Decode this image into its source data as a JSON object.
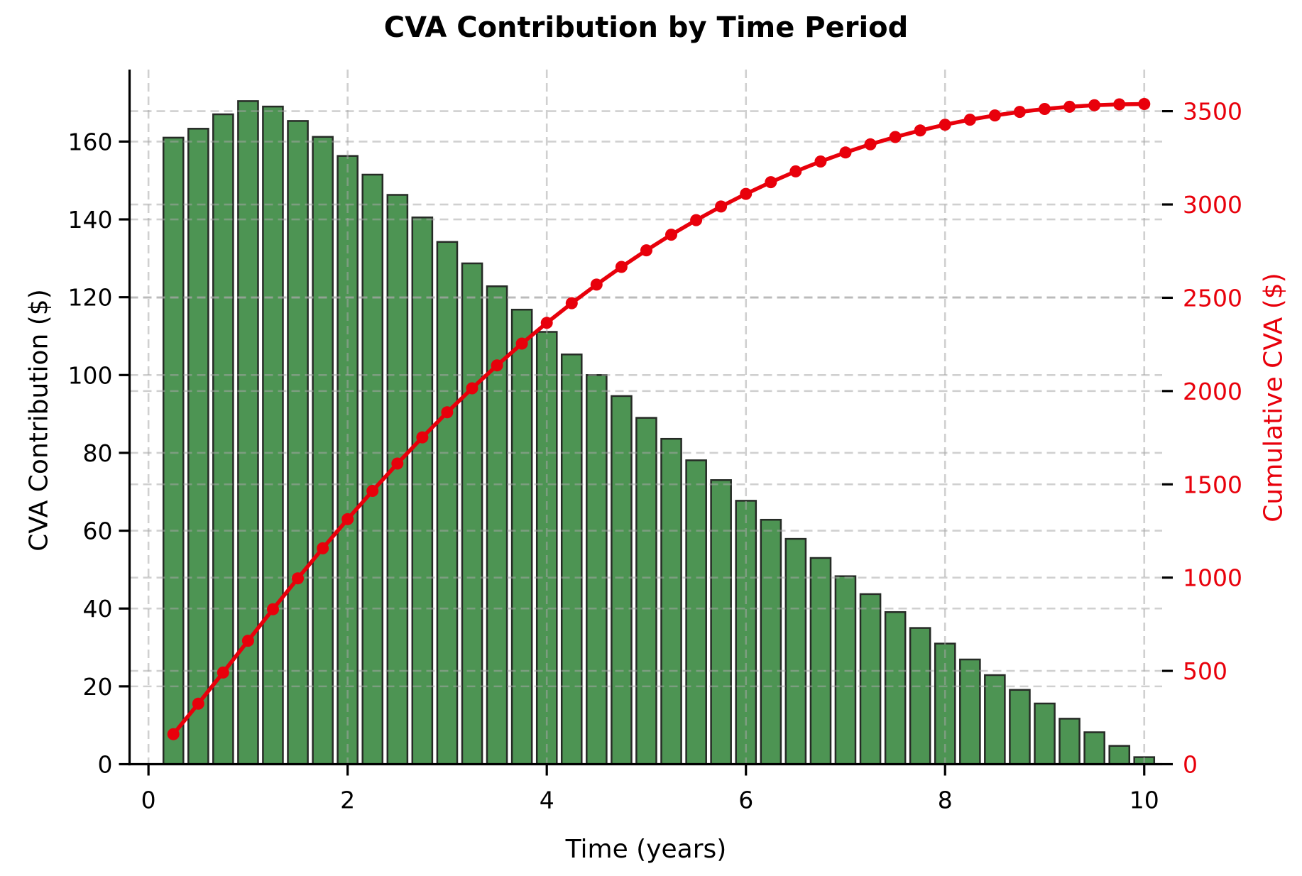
{
  "title": "CVA Contribution by Time Period",
  "x_axis": {
    "label": "Time (years)",
    "tick_values": [
      0,
      2,
      4,
      6,
      8,
      10
    ],
    "tick_labels": [
      "0",
      "2",
      "4",
      "6",
      "8",
      "10"
    ]
  },
  "left_axis": {
    "label": "CVA Contribution ($)",
    "tick_values": [
      0,
      20,
      40,
      60,
      80,
      100,
      120,
      140,
      160
    ],
    "tick_labels": [
      "0",
      "20",
      "40",
      "60",
      "80",
      "100",
      "120",
      "140",
      "160"
    ],
    "color": "#000000"
  },
  "right_axis": {
    "label": "Cumulative CVA ($)",
    "tick_values": [
      0,
      500,
      1000,
      1500,
      2000,
      2500,
      3000,
      3500
    ],
    "tick_labels": [
      "0",
      "500",
      "1000",
      "1500",
      "2000",
      "2500",
      "3000",
      "3500"
    ],
    "color": "#e8000b"
  },
  "colors": {
    "bar_fill": "#4d9453",
    "bar_edge": "#262b26",
    "line": "#e8000b",
    "grid": "#a7a7a7",
    "background": "#ffffff",
    "tick_mark": "#000000"
  },
  "chart_data": {
    "type": "bar",
    "title": "CVA Contribution by Time Period",
    "xlabel": "Time (years)",
    "ylabel": "CVA Contribution ($)",
    "ylabel_right": "Cumulative CVA ($)",
    "x": [
      0.25,
      0.5,
      0.75,
      1.0,
      1.25,
      1.5,
      1.75,
      2.0,
      2.25,
      2.5,
      2.75,
      3.0,
      3.25,
      3.5,
      3.75,
      4.0,
      4.25,
      4.5,
      4.75,
      5.0,
      5.25,
      5.5,
      5.75,
      6.0,
      6.25,
      6.5,
      6.75,
      7.0,
      7.25,
      7.5,
      7.75,
      8.0,
      8.25,
      8.5,
      8.75,
      9.0,
      9.25,
      9.5,
      9.75,
      10.0
    ],
    "series": [
      {
        "name": "CVA Contribution",
        "type": "bar",
        "axis": "left",
        "values": [
          161.0,
          163.3,
          167.0,
          170.4,
          169.0,
          165.3,
          161.2,
          156.3,
          151.5,
          146.3,
          140.5,
          134.2,
          128.7,
          122.8,
          116.8,
          111.1,
          105.3,
          100.0,
          94.6,
          89.0,
          83.6,
          78.1,
          73.0,
          67.7,
          62.8,
          57.9,
          53.0,
          48.3,
          43.7,
          39.1,
          35.0,
          31.0,
          26.9,
          22.9,
          19.1,
          15.6,
          11.7,
          8.2,
          4.7,
          1.8
        ]
      },
      {
        "name": "Cumulative CVA",
        "type": "line",
        "axis": "right",
        "values": [
          161.0,
          324.3,
          491.3,
          661.7,
          830.7,
          996.0,
          1157.2,
          1313.5,
          1465.0,
          1611.3,
          1751.8,
          1886.0,
          2014.7,
          2137.5,
          2254.3,
          2365.4,
          2470.7,
          2570.7,
          2665.3,
          2754.3,
          2837.9,
          2916.0,
          2989.0,
          3056.7,
          3119.5,
          3177.4,
          3230.4,
          3278.7,
          3322.4,
          3361.5,
          3396.5,
          3427.5,
          3454.4,
          3477.3,
          3496.4,
          3512.0,
          3523.7,
          3531.9,
          3536.6,
          3538.4
        ]
      }
    ],
    "xlim": [
      -0.19,
      10.18
    ],
    "left_ylim": [
      0,
      178.5
    ],
    "right_ylim": [
      0,
      3723
    ],
    "grid": true,
    "legend": "none",
    "bar_width_years": 0.2
  }
}
